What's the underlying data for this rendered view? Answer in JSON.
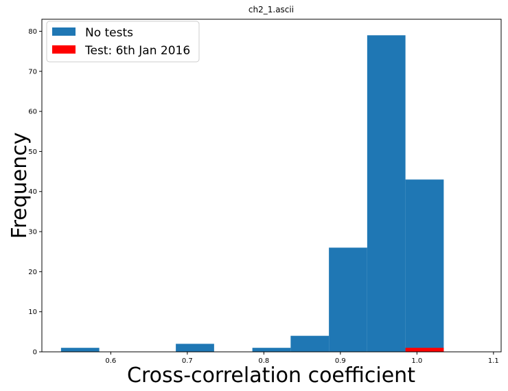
{
  "chart_data": {
    "type": "bar",
    "subtype": "histogram",
    "title": "ch2_1.ascii",
    "xlabel": "Cross-correlation coefficient",
    "ylabel": "Frequency",
    "xlim": [
      0.51,
      1.11
    ],
    "ylim": [
      0,
      83
    ],
    "xticks": [
      0.6,
      0.7,
      0.8,
      0.9,
      1.0,
      1.1
    ],
    "xtick_labels": [
      "0.6",
      "0.7",
      "0.8",
      "0.9",
      "1.0",
      "1.1"
    ],
    "yticks": [
      0,
      10,
      20,
      30,
      40,
      50,
      60,
      70,
      80
    ],
    "ytick_labels": [
      "0",
      "10",
      "20",
      "30",
      "40",
      "50",
      "60",
      "70",
      "80"
    ],
    "grid": false,
    "legend_position": "top-left",
    "series": [
      {
        "name": "No tests",
        "color": "#1f77b4",
        "bins": [
          {
            "x0": 0.535,
            "x1": 0.585,
            "value": 1
          },
          {
            "x0": 0.585,
            "x1": 0.635,
            "value": 0
          },
          {
            "x0": 0.635,
            "x1": 0.685,
            "value": 0
          },
          {
            "x0": 0.685,
            "x1": 0.735,
            "value": 2
          },
          {
            "x0": 0.735,
            "x1": 0.785,
            "value": 0
          },
          {
            "x0": 0.785,
            "x1": 0.835,
            "value": 1
          },
          {
            "x0": 0.835,
            "x1": 0.885,
            "value": 4
          },
          {
            "x0": 0.885,
            "x1": 0.935,
            "value": 26
          },
          {
            "x0": 0.935,
            "x1": 0.985,
            "value": 79
          },
          {
            "x0": 0.985,
            "x1": 1.035,
            "value": 43
          }
        ]
      },
      {
        "name": "Test: 6th Jan 2016",
        "color": "#ff0000",
        "bins": [
          {
            "x0": 0.985,
            "x1": 1.035,
            "value": 1
          }
        ]
      }
    ]
  }
}
